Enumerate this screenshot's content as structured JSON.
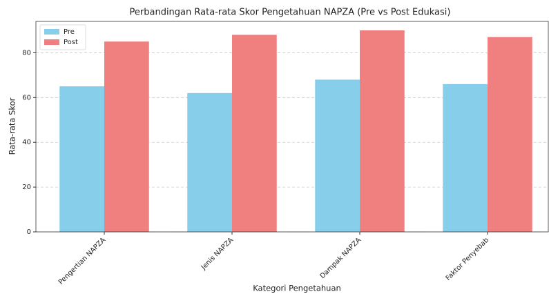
{
  "chart_data": {
    "type": "bar",
    "title": "Perbandingan Rata-rata Skor Pengetahuan NAPZA (Pre vs Post Edukasi)",
    "x_label": "Kategori Pengetahuan",
    "y_label": "Rata-rata Skor",
    "categories": [
      "Pengertian NAPZA",
      "Jenis NAPZA",
      "Dampak NAPZA",
      "Faktor Penyebab"
    ],
    "series": [
      {
        "name": "Pre",
        "color": "#87ceeb",
        "values": [
          65,
          62,
          68,
          66
        ]
      },
      {
        "name": "Post",
        "color": "#f08080",
        "values": [
          85,
          88,
          90,
          87
        ]
      }
    ],
    "ylim": [
      0,
      94
    ],
    "yticks": [
      0,
      20,
      40,
      60,
      80
    ],
    "grid": true,
    "legend": "upper left"
  }
}
